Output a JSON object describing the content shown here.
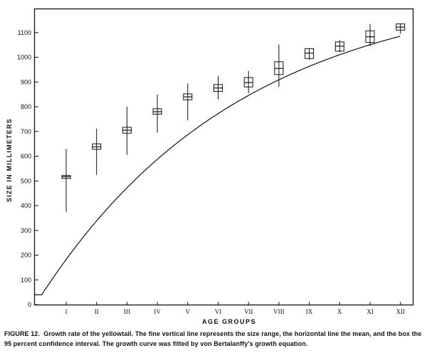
{
  "caption": {
    "figure_number": "FIGURE 12.",
    "text": "Growth rate of the yellowtail. The fine vertical line represents the size range, the horizontal line the mean, and the box the 95 percent confidence interval. The growth curve was fitted by von Bertalanffy's growth equation."
  },
  "chart_data": {
    "type": "box-range-with-curve",
    "xlabel": "AGE GROUPS",
    "ylabel": "SIZE IN MILLIMETERS",
    "ylim": [
      0,
      1150
    ],
    "yticks": [
      0,
      100,
      200,
      300,
      400,
      500,
      600,
      700,
      800,
      900,
      1000,
      1100
    ],
    "categories": [
      "I",
      "II",
      "III",
      "IV",
      "V",
      "VI",
      "VII",
      "VIII",
      "IX",
      "X",
      "XI",
      "XII"
    ],
    "range_min": [
      375,
      525,
      605,
      695,
      745,
      830,
      855,
      880,
      990,
      1020,
      1045,
      1095
    ],
    "range_max": [
      630,
      712,
      800,
      850,
      895,
      925,
      945,
      1052,
      1035,
      1070,
      1135,
      1135
    ],
    "mean": [
      517,
      638,
      705,
      780,
      840,
      876,
      898,
      955,
      1017,
      1045,
      1083,
      1122
    ],
    "ci_low": [
      510,
      628,
      693,
      770,
      828,
      862,
      880,
      930,
      995,
      1025,
      1060,
      1110
    ],
    "ci_high": [
      522,
      650,
      717,
      792,
      852,
      890,
      918,
      982,
      1035,
      1062,
      1107,
      1135
    ],
    "grid": false
  }
}
